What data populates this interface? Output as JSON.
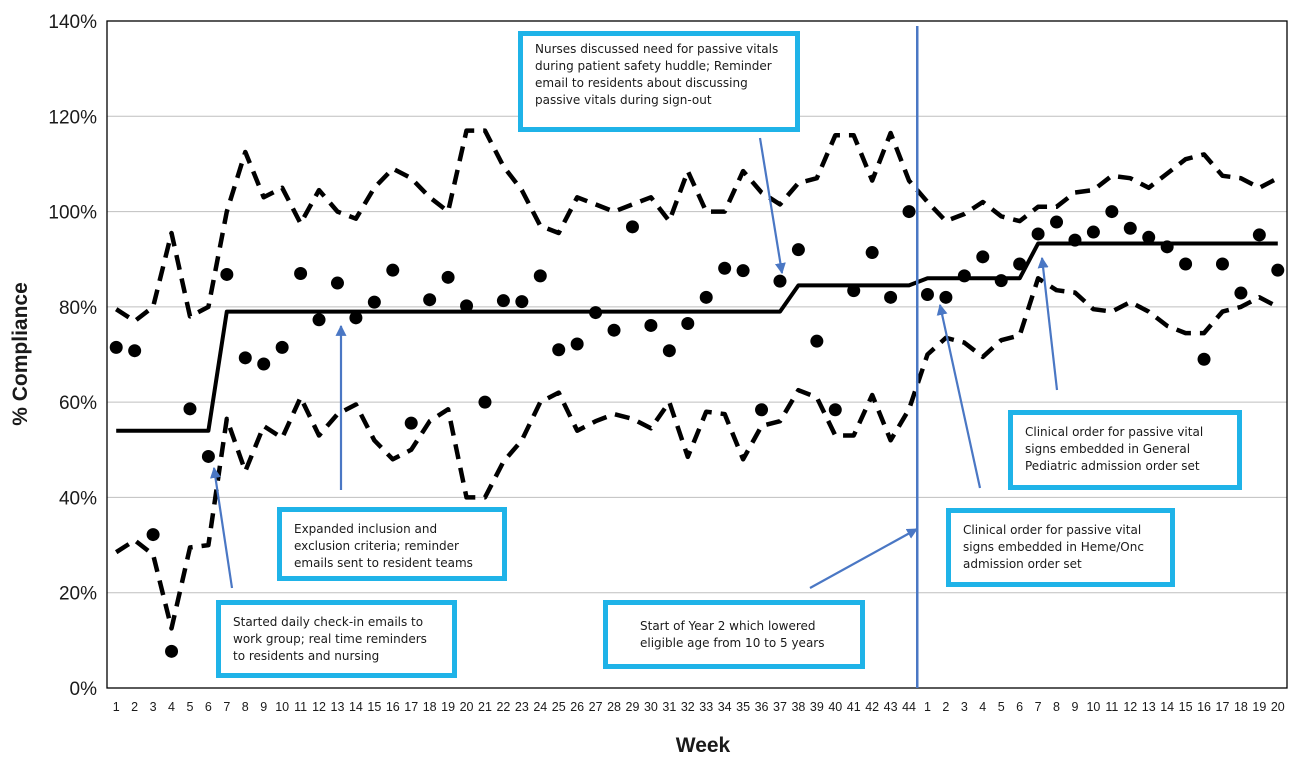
{
  "chart_data": {
    "type": "scatter",
    "title": "",
    "xlabel": "Week",
    "ylabel": "% Compliance",
    "ylim": [
      0,
      140
    ],
    "y_ticks": [
      "0%",
      "20%",
      "40%",
      "60%",
      "80%",
      "100%",
      "120%",
      "140%"
    ],
    "x_ticks": [
      "1",
      "2",
      "3",
      "4",
      "5",
      "6",
      "7",
      "8",
      "9",
      "10",
      "11",
      "12",
      "13",
      "14",
      "15",
      "16",
      "17",
      "18",
      "19",
      "20",
      "21",
      "22",
      "23",
      "24",
      "25",
      "26",
      "27",
      "28",
      "29",
      "30",
      "31",
      "32",
      "33",
      "34",
      "35",
      "36",
      "37",
      "38",
      "39",
      "40",
      "41",
      "42",
      "43",
      "44",
      "1",
      "2",
      "3",
      "4",
      "5",
      "6",
      "7",
      "8",
      "9",
      "10",
      "11",
      "12",
      "13",
      "14",
      "15",
      "16",
      "17",
      "18",
      "19",
      "20"
    ],
    "grid": "horizontal",
    "year_divider_after_index": 44,
    "series": [
      {
        "role": "points",
        "values": [
          71.5,
          70.8,
          32.2,
          7.7,
          58.6,
          48.6,
          86.8,
          69.3,
          68.0,
          71.5,
          87.0,
          77.3,
          85.0,
          77.7,
          81.0,
          87.7,
          55.6,
          81.5,
          86.2,
          80.2,
          60.0,
          81.3,
          81.1,
          86.5,
          71.0,
          72.2,
          78.8,
          75.1,
          96.8,
          76.1,
          70.8,
          76.5,
          82.0,
          88.1,
          87.6,
          58.4,
          85.4,
          92.0,
          72.8,
          58.4,
          83.4,
          91.4,
          82.0,
          100.0,
          82.6,
          82.0,
          86.5,
          90.5,
          85.5,
          89.0,
          95.3,
          97.8,
          94.0,
          95.7,
          100.0,
          96.5,
          94.6,
          92.6,
          89.0,
          69.0,
          89.0,
          82.9,
          95.1,
          87.7
        ]
      },
      {
        "role": "center-line",
        "values": [
          54,
          54,
          54,
          54,
          54,
          54,
          79,
          79,
          79,
          79,
          79,
          79,
          79,
          79,
          79,
          79,
          79,
          79,
          79,
          79,
          79,
          79,
          79,
          79,
          79,
          79,
          79,
          79,
          79,
          79,
          79,
          79,
          79,
          79,
          79,
          79,
          79,
          84.5,
          84.5,
          84.5,
          84.5,
          84.5,
          84.5,
          84.5,
          86,
          86,
          86,
          86,
          86,
          86,
          93.3,
          93.3,
          93.3,
          93.3,
          93.3,
          93.3,
          93.3,
          93.3,
          93.3,
          93.3,
          93.3,
          93.3,
          93.3,
          93.3
        ]
      },
      {
        "role": "upper-limit",
        "values": [
          79.5,
          77,
          80,
          95.5,
          78,
          80,
          100,
          112.5,
          103,
          105,
          97.5,
          104.5,
          100,
          98.5,
          105,
          109,
          107,
          103,
          100,
          117,
          117,
          109.5,
          104.5,
          97,
          95.5,
          103,
          101.5,
          100,
          101.5,
          103,
          98,
          108.5,
          100,
          100,
          108.5,
          104,
          101.5,
          106,
          107,
          116,
          116,
          106.5,
          116.5,
          106.5,
          102,
          98,
          99.5,
          102,
          99,
          98,
          101,
          101,
          104,
          104.5,
          107.5,
          107,
          105,
          108,
          111,
          112,
          107.5,
          107,
          105,
          107
        ]
      },
      {
        "role": "lower-limit",
        "values": [
          28.5,
          31,
          28,
          12.5,
          29.5,
          30,
          56.5,
          45.5,
          55,
          52.5,
          61,
          53,
          57.5,
          59.5,
          52,
          48,
          50,
          56,
          58.5,
          40,
          40,
          47.5,
          52,
          60,
          62,
          54,
          56,
          57.5,
          56.5,
          54.5,
          60,
          48.5,
          58,
          57.5,
          48,
          55,
          56,
          62.5,
          61,
          53,
          53,
          61.5,
          52,
          58.5,
          70,
          73.5,
          72.5,
          69.5,
          73,
          74,
          86,
          83.5,
          83,
          79.5,
          79,
          81,
          79,
          76,
          74.5,
          74.5,
          79,
          80,
          82,
          80
        ]
      }
    ],
    "annotations": [
      "Nurses discussed need for passive vitals during patient safety huddle; Reminder email to residents about discussing passive vitals during sign-out",
      "Expanded inclusion and exclusion criteria; reminder emails sent to resident teams",
      "Started daily check-in emails to work group; real time reminders to residents and nursing",
      "Start of Year 2 which lowered eligible age from 10 to 5 years",
      "Clinical order for passive vital signs embedded in Heme/Onc admission order set",
      "Clinical order for passive vital signs embedded in General Pediatric admission order set"
    ],
    "colors": {
      "arrow": "#4a77c4",
      "box_border": "#1fb3e8",
      "divider": "#4a77c4",
      "grid": "#bfbfbf",
      "ink": "#000000"
    }
  }
}
